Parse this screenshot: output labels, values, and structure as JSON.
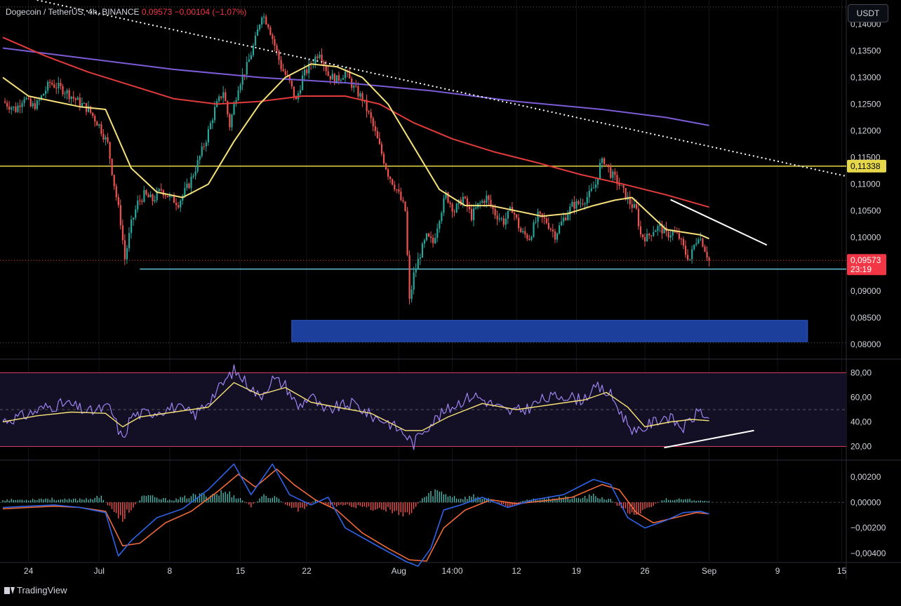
{
  "legend": {
    "symbol": "Dogecoin / TetherUS, 4h, BINANCE",
    "price": "0,09573",
    "change": "−0,00104 (−1,07%)"
  },
  "currency_button": "USDT",
  "footer": {
    "brand": "TradingView"
  },
  "colors": {
    "up": "#26a69a",
    "down": "#ef5350",
    "ma_fast": "#f5e07a",
    "ma_mid": "#e23b3b",
    "ma_slow": "#7b5cd6",
    "support": "#5ec4d6",
    "resistance": "#e6d84a",
    "demand_zone": "#1c3f9c",
    "rsi": "#9e84f0",
    "rsi_ma": "#f5e07a",
    "macd": "#2f63e8",
    "signal": "#f06a3a"
  },
  "chart_data": [
    {
      "type": "candlestick",
      "title": "",
      "x_tick_labels": [
        "24",
        "Jul",
        "8",
        "15",
        "22",
        "Aug",
        "14:00",
        "12",
        "19",
        "26",
        "Sep",
        "9",
        "15"
      ],
      "y_tick_labels": [
        "0,14000",
        "0,13500",
        "0,13000",
        "0,12500",
        "0,12000",
        "0,11500",
        "0,11000",
        "0,10500",
        "0,10000",
        "0,09500",
        "0,09000",
        "0,08500",
        "0,08000"
      ],
      "ylim": [
        0.0775,
        0.1445
      ],
      "price_anchors": [
        [
          0,
          0.1255
        ],
        [
          6,
          0.124
        ],
        [
          10,
          0.1265
        ],
        [
          13,
          0.1245
        ],
        [
          16,
          0.125
        ],
        [
          22,
          0.129
        ],
        [
          29,
          0.1275
        ],
        [
          35,
          0.1255
        ],
        [
          40,
          0.124
        ],
        [
          45,
          0.121
        ],
        [
          49,
          0.1175
        ],
        [
          52,
          0.11
        ],
        [
          55,
          0.103
        ],
        [
          57,
          0.096
        ],
        [
          60,
          0.1025
        ],
        [
          63,
          0.1065
        ],
        [
          66,
          0.108
        ],
        [
          70,
          0.107
        ],
        [
          74,
          0.109
        ],
        [
          78,
          0.1075
        ],
        [
          82,
          0.1065
        ],
        [
          87,
          0.11
        ],
        [
          91,
          0.114
        ],
        [
          95,
          0.1185
        ],
        [
          99,
          0.124
        ],
        [
          103,
          0.1275
        ],
        [
          106,
          0.121
        ],
        [
          110,
          0.1285
        ],
        [
          114,
          0.132
        ],
        [
          118,
          0.137
        ],
        [
          121,
          0.142
        ],
        [
          124,
          0.14
        ],
        [
          127,
          0.136
        ],
        [
          130,
          0.132
        ],
        [
          134,
          0.129
        ],
        [
          137,
          0.1255
        ],
        [
          140,
          0.13
        ],
        [
          144,
          0.1325
        ],
        [
          148,
          0.135
        ],
        [
          152,
          0.1305
        ],
        [
          156,
          0.1295
        ],
        [
          160,
          0.131
        ],
        [
          164,
          0.128
        ],
        [
          168,
          0.126
        ],
        [
          172,
          0.122
        ],
        [
          176,
          0.117
        ],
        [
          180,
          0.112
        ],
        [
          184,
          0.109
        ],
        [
          188,
          0.105
        ],
        [
          190,
          0.088
        ],
        [
          192,
          0.093
        ],
        [
          195,
          0.097
        ],
        [
          198,
          0.1
        ],
        [
          201,
          0.099
        ],
        [
          204,
          0.104
        ],
        [
          207,
          0.108
        ],
        [
          211,
          0.105
        ],
        [
          215,
          0.1075
        ],
        [
          219,
          0.104
        ],
        [
          222,
          0.106
        ],
        [
          226,
          0.1075
        ],
        [
          230,
          0.1045
        ],
        [
          234,
          0.103
        ],
        [
          238,
          0.1055
        ],
        [
          242,
          0.101
        ],
        [
          246,
          0.1
        ],
        [
          250,
          0.104
        ],
        [
          254,
          0.103
        ],
        [
          258,
          0.1005
        ],
        [
          262,
          0.1035
        ],
        [
          266,
          0.106
        ],
        [
          270,
          0.1065
        ],
        [
          274,
          0.108
        ],
        [
          277,
          0.11
        ],
        [
          279,
          0.1135
        ],
        [
          281,
          0.1145
        ],
        [
          284,
          0.112
        ],
        [
          287,
          0.1105
        ],
        [
          290,
          0.1085
        ],
        [
          293,
          0.1065
        ],
        [
          296,
          0.105
        ],
        [
          298,
          0.1005
        ],
        [
          301,
          0.1
        ],
        [
          304,
          0.1015
        ],
        [
          307,
          0.102
        ],
        [
          310,
          0.1005
        ],
        [
          313,
          0.101
        ],
        [
          316,
          0.1
        ],
        [
          319,
          0.097
        ],
        [
          321,
          0.096
        ],
        [
          323,
          0.0985
        ],
        [
          325,
          0.1005
        ],
        [
          327,
          0.099
        ],
        [
          330,
          0.0957
        ]
      ],
      "ma_fast": [
        [
          0,
          0.13
        ],
        [
          12,
          0.1265
        ],
        [
          24,
          0.1255
        ],
        [
          36,
          0.1245
        ],
        [
          48,
          0.124
        ],
        [
          60,
          0.113
        ],
        [
          72,
          0.1085
        ],
        [
          84,
          0.1075
        ],
        [
          96,
          0.11
        ],
        [
          108,
          0.118
        ],
        [
          120,
          0.125
        ],
        [
          132,
          0.13
        ],
        [
          144,
          0.1325
        ],
        [
          156,
          0.132
        ],
        [
          168,
          0.13
        ],
        [
          180,
          0.125
        ],
        [
          192,
          0.117
        ],
        [
          204,
          0.109
        ],
        [
          216,
          0.106
        ],
        [
          228,
          0.106
        ],
        [
          240,
          0.105
        ],
        [
          252,
          0.104
        ],
        [
          264,
          0.1045
        ],
        [
          276,
          0.106
        ],
        [
          286,
          0.107
        ],
        [
          294,
          0.1075
        ],
        [
          302,
          0.1045
        ],
        [
          310,
          0.1015
        ],
        [
          318,
          0.101
        ],
        [
          326,
          0.1005
        ],
        [
          330,
          0.0998
        ]
      ],
      "ma_mid": [
        [
          0,
          0.1375
        ],
        [
          20,
          0.134
        ],
        [
          40,
          0.131
        ],
        [
          60,
          0.1285
        ],
        [
          80,
          0.126
        ],
        [
          100,
          0.125
        ],
        [
          120,
          0.1255
        ],
        [
          140,
          0.1265
        ],
        [
          160,
          0.1265
        ],
        [
          176,
          0.125
        ],
        [
          192,
          0.1215
        ],
        [
          210,
          0.1185
        ],
        [
          230,
          0.116
        ],
        [
          250,
          0.114
        ],
        [
          270,
          0.1118
        ],
        [
          290,
          0.11
        ],
        [
          310,
          0.108
        ],
        [
          330,
          0.1057
        ]
      ],
      "ma_slow": [
        [
          0,
          0.1355
        ],
        [
          40,
          0.1335
        ],
        [
          80,
          0.1315
        ],
        [
          120,
          0.13
        ],
        [
          160,
          0.129
        ],
        [
          200,
          0.1275
        ],
        [
          240,
          0.1255
        ],
        [
          280,
          0.124
        ],
        [
          310,
          0.1225
        ],
        [
          330,
          0.121
        ]
      ],
      "resistance_level": 0.11338,
      "support_level": 0.0941,
      "demand_zone": [
        0.0805,
        0.0845
      ],
      "price_label": "0,09573",
      "countdown": "23:19",
      "level_label": "0,11338"
    },
    {
      "type": "line",
      "title": "",
      "y_tick_labels": [
        "80,00",
        "60,00",
        "40,00",
        "20,00"
      ],
      "ylim": [
        10,
        90
      ],
      "bands": [
        20,
        80
      ],
      "rsi": [
        [
          0,
          41
        ],
        [
          10,
          45
        ],
        [
          20,
          52
        ],
        [
          30,
          55
        ],
        [
          40,
          48
        ],
        [
          50,
          52
        ],
        [
          56,
          25
        ],
        [
          60,
          45
        ],
        [
          70,
          48
        ],
        [
          80,
          52
        ],
        [
          90,
          46
        ],
        [
          100,
          65
        ],
        [
          108,
          82
        ],
        [
          114,
          72
        ],
        [
          120,
          60
        ],
        [
          126,
          75
        ],
        [
          132,
          70
        ],
        [
          138,
          52
        ],
        [
          144,
          62
        ],
        [
          150,
          48
        ],
        [
          156,
          52
        ],
        [
          164,
          55
        ],
        [
          172,
          45
        ],
        [
          180,
          40
        ],
        [
          188,
          30
        ],
        [
          192,
          22
        ],
        [
          196,
          33
        ],
        [
          204,
          45
        ],
        [
          212,
          55
        ],
        [
          220,
          62
        ],
        [
          228,
          55
        ],
        [
          236,
          48
        ],
        [
          244,
          50
        ],
        [
          252,
          58
        ],
        [
          262,
          62
        ],
        [
          270,
          58
        ],
        [
          278,
          68
        ],
        [
          284,
          62
        ],
        [
          290,
          44
        ],
        [
          296,
          30
        ],
        [
          302,
          38
        ],
        [
          310,
          45
        ],
        [
          318,
          35
        ],
        [
          326,
          50
        ],
        [
          330,
          40
        ]
      ],
      "rsi_ma": [
        [
          0,
          40
        ],
        [
          16,
          45
        ],
        [
          32,
          48
        ],
        [
          48,
          47
        ],
        [
          56,
          36
        ],
        [
          64,
          44
        ],
        [
          80,
          48
        ],
        [
          96,
          52
        ],
        [
          108,
          72
        ],
        [
          120,
          62
        ],
        [
          132,
          68
        ],
        [
          144,
          56
        ],
        [
          156,
          52
        ],
        [
          172,
          47
        ],
        [
          188,
          33
        ],
        [
          196,
          33
        ],
        [
          208,
          44
        ],
        [
          224,
          55
        ],
        [
          240,
          50
        ],
        [
          256,
          54
        ],
        [
          272,
          58
        ],
        [
          282,
          64
        ],
        [
          292,
          52
        ],
        [
          300,
          36
        ],
        [
          312,
          40
        ],
        [
          322,
          42
        ],
        [
          330,
          41
        ]
      ]
    },
    {
      "type": "bar",
      "title": "",
      "y_tick_labels": [
        "0,00200",
        "0,00000",
        "−0,00200",
        "−0,00400"
      ],
      "ylim": [
        -0.0046,
        0.0032
      ],
      "histogram": [
        [
          0,
          0.0002
        ],
        [
          10,
          0.0002
        ],
        [
          20,
          0.0003
        ],
        [
          30,
          0.0002
        ],
        [
          40,
          0.0003
        ],
        [
          46,
          0.0004
        ],
        [
          52,
          -0.0008
        ],
        [
          56,
          -0.0012
        ],
        [
          60,
          -0.0005
        ],
        [
          66,
          0.0006
        ],
        [
          72,
          0.0003
        ],
        [
          80,
          0.0002
        ],
        [
          88,
          0.0005
        ],
        [
          96,
          0.0006
        ],
        [
          104,
          0.0008
        ],
        [
          110,
          0.0004
        ],
        [
          116,
          -0.0003
        ],
        [
          122,
          0.0005
        ],
        [
          128,
          0.0004
        ],
        [
          134,
          -0.0004
        ],
        [
          140,
          -0.0006
        ],
        [
          146,
          0.0002
        ],
        [
          152,
          -0.0003
        ],
        [
          160,
          -0.0002
        ],
        [
          168,
          -0.0004
        ],
        [
          176,
          -0.0005
        ],
        [
          184,
          -0.0007
        ],
        [
          190,
          -0.0009
        ],
        [
          196,
          0.0003
        ],
        [
          202,
          0.0009
        ],
        [
          208,
          0.0006
        ],
        [
          214,
          0.0003
        ],
        [
          220,
          0.0005
        ],
        [
          228,
          0.0002
        ],
        [
          236,
          -0.0004
        ],
        [
          244,
          0.0002
        ],
        [
          252,
          0.0003
        ],
        [
          260,
          0.0004
        ],
        [
          268,
          0.0003
        ],
        [
          276,
          0.0005
        ],
        [
          284,
          0.0002
        ],
        [
          290,
          -0.0006
        ],
        [
          296,
          -0.0008
        ],
        [
          302,
          -0.0004
        ],
        [
          310,
          0.0003
        ],
        [
          318,
          0.0002
        ],
        [
          326,
          0.0002
        ],
        [
          330,
          0.0001
        ]
      ],
      "macd": [
        [
          0,
          -0.0004
        ],
        [
          12,
          -0.0003
        ],
        [
          24,
          -0.0002
        ],
        [
          36,
          -0.0004
        ],
        [
          48,
          -0.0008
        ],
        [
          54,
          -0.0042
        ],
        [
          60,
          -0.003
        ],
        [
          72,
          -0.0012
        ],
        [
          84,
          -0.0005
        ],
        [
          96,
          0.001
        ],
        [
          108,
          0.003
        ],
        [
          116,
          0.0006
        ],
        [
          126,
          0.003
        ],
        [
          134,
          0.0006
        ],
        [
          144,
          -0.0002
        ],
        [
          152,
          0.0004
        ],
        [
          160,
          -0.002
        ],
        [
          176,
          -0.0035
        ],
        [
          188,
          -0.0046
        ],
        [
          194,
          -0.005
        ],
        [
          200,
          -0.0036
        ],
        [
          206,
          -0.0006
        ],
        [
          214,
          -0.0002
        ],
        [
          224,
          0.0004
        ],
        [
          236,
          -0.0004
        ],
        [
          248,
          0.0002
        ],
        [
          262,
          0.0006
        ],
        [
          276,
          0.0018
        ],
        [
          284,
          0.0014
        ],
        [
          292,
          -0.0012
        ],
        [
          300,
          -0.002
        ],
        [
          310,
          -0.0014
        ],
        [
          318,
          -0.0008
        ],
        [
          326,
          -0.0007
        ],
        [
          330,
          -0.0009
        ]
      ],
      "signal": [
        [
          0,
          -0.0005
        ],
        [
          12,
          -0.0004
        ],
        [
          24,
          -0.0003
        ],
        [
          36,
          -0.0004
        ],
        [
          48,
          -0.0007
        ],
        [
          56,
          -0.0034
        ],
        [
          64,
          -0.0032
        ],
        [
          76,
          -0.0016
        ],
        [
          88,
          -0.0007
        ],
        [
          100,
          0.0008
        ],
        [
          110,
          0.0022
        ],
        [
          118,
          0.0012
        ],
        [
          128,
          0.0026
        ],
        [
          136,
          0.0014
        ],
        [
          146,
          0.0002
        ],
        [
          156,
          -0.0006
        ],
        [
          168,
          -0.0024
        ],
        [
          180,
          -0.0036
        ],
        [
          190,
          -0.0045
        ],
        [
          198,
          -0.0046
        ],
        [
          206,
          -0.002
        ],
        [
          216,
          -0.0006
        ],
        [
          228,
          0.0002
        ],
        [
          240,
          -0.0001
        ],
        [
          252,
          0.0001
        ],
        [
          266,
          0.0004
        ],
        [
          280,
          0.0014
        ],
        [
          288,
          0.001
        ],
        [
          296,
          -0.0008
        ],
        [
          304,
          -0.0016
        ],
        [
          314,
          -0.0012
        ],
        [
          324,
          -0.0008
        ],
        [
          330,
          -0.0009
        ]
      ]
    }
  ]
}
